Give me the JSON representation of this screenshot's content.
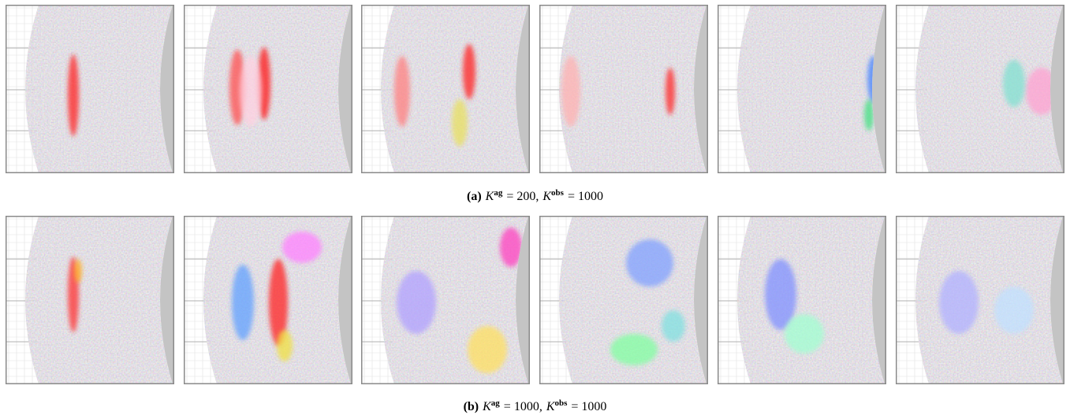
{
  "figure": {
    "rows": [
      {
        "caption": {
          "label": "(a)",
          "k_ag": "K",
          "ag": "ag",
          "ag_value": "= 200,",
          "k_obs": "K",
          "obs": "obs",
          "obs_value": "= 1000"
        }
      },
      {
        "caption": {
          "label": "(b)",
          "k_ag": "K",
          "ag": "ag",
          "ag_value": "= 1000,",
          "k_obs": "K",
          "obs": "obs",
          "obs_value": "= 1000"
        }
      }
    ]
  }
}
